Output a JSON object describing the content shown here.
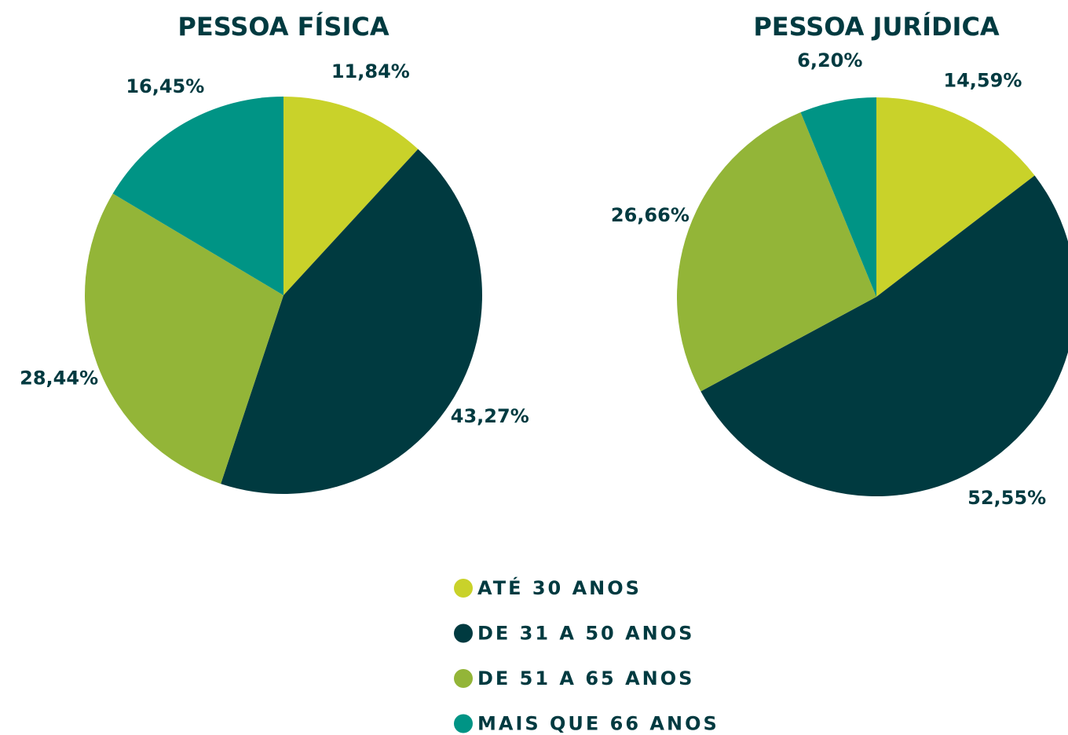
{
  "chart_data": [
    {
      "type": "pie",
      "title": "PESSOA FÍSICA",
      "values": [
        11.84,
        43.27,
        28.44,
        16.45
      ],
      "value_labels": [
        "11,84%",
        "43,27%",
        "28,44%",
        "16,45%"
      ]
    },
    {
      "type": "pie",
      "title": "PESSOA JURÍDICA",
      "values": [
        14.59,
        52.55,
        26.66,
        6.2
      ],
      "value_labels": [
        "14,59%",
        "52,55%",
        "26,66%",
        "6,20%"
      ]
    }
  ],
  "legend": {
    "categories": [
      "ATÉ 30 ANOS",
      "DE 31 A 50 ANOS",
      "DE 51 A 65 ANOS",
      "MAIS QUE 66 ANOS"
    ],
    "colors": [
      "#c9d22a",
      "#003a40",
      "#93b538",
      "#009485"
    ]
  }
}
